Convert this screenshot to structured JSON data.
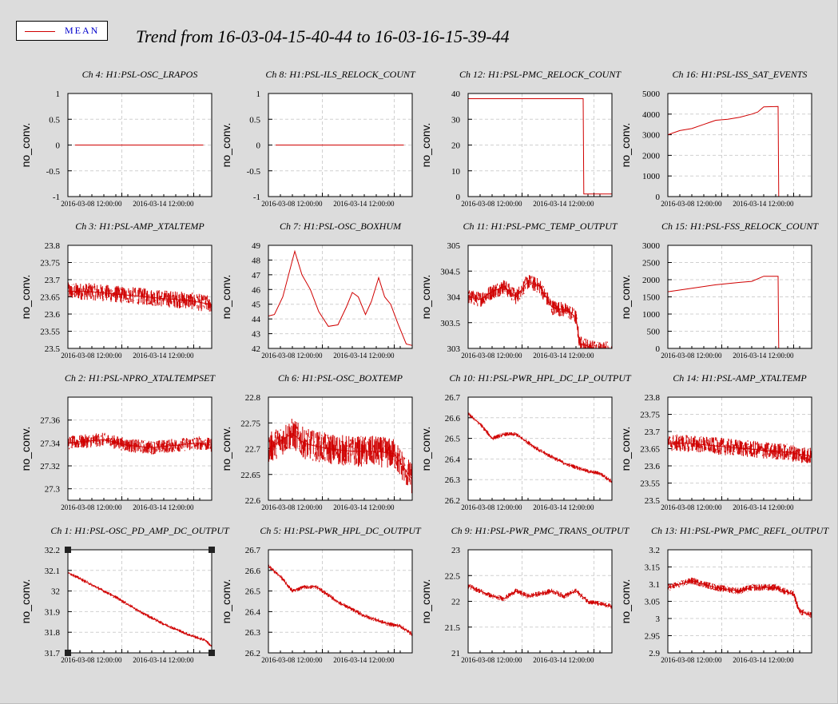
{
  "legend": {
    "label": "MEAN",
    "color": "#d00000"
  },
  "header": {
    "title": "Trend from 16-03-04-15-40-44 to 16-03-16-15-39-44"
  },
  "chart_data": [
    {
      "type": "line",
      "title": "Ch 4: H1:PSL-OSC_LRAPOS",
      "ylabel": "no_conv.",
      "ylim": [
        -1,
        1
      ],
      "yticks": [
        "1",
        "0.5",
        "0",
        "-0.5",
        "-1"
      ],
      "xticks": [
        "2016-03-08 12:00:00",
        "2016-03-14 12:00:00"
      ],
      "xlim": [
        0,
        12
      ],
      "series": [
        {
          "points": [
            [
              0.6,
              0
            ],
            [
              11.3,
              0
            ]
          ],
          "noise": 0
        }
      ]
    },
    {
      "type": "line",
      "title": "Ch 8: H1:PSL-ILS_RELOCK_COUNT",
      "ylabel": "no_conv.",
      "ylim": [
        -1,
        1
      ],
      "yticks": [
        "1",
        "0.5",
        "0",
        "-0.5",
        "-1"
      ],
      "xticks": [
        "2016-03-08 12:00:00",
        "2016-03-14 12:00:00"
      ],
      "xlim": [
        0,
        12
      ],
      "series": [
        {
          "points": [
            [
              0.6,
              0
            ],
            [
              11.3,
              0
            ]
          ],
          "noise": 0
        }
      ]
    },
    {
      "type": "line",
      "title": "Ch 12: H1:PSL-PMC_RELOCK_COUNT",
      "ylabel": "no_conv.",
      "ylim": [
        0,
        40
      ],
      "yticks": [
        "40",
        "30",
        "20",
        "10",
        "0"
      ],
      "xticks": [
        "2016-03-08 12:00:00",
        "2016-03-14 12:00:00"
      ],
      "xlim": [
        0,
        12
      ],
      "series": [
        {
          "points": [
            [
              0,
              38
            ],
            [
              9.6,
              38
            ],
            [
              9.65,
              1
            ],
            [
              12,
              1
            ]
          ],
          "noise": 0
        }
      ]
    },
    {
      "type": "line",
      "title": "Ch 16: H1:PSL-ISS_SAT_EVENTS",
      "ylabel": "no_conv.",
      "ylim": [
        0,
        5000
      ],
      "yticks": [
        "5000",
        "4000",
        "3000",
        "2000",
        "1000",
        "0"
      ],
      "xticks": [
        "2016-03-08 12:00:00",
        "2016-03-14 12:00:00"
      ],
      "xlim": [
        0,
        12
      ],
      "series": [
        {
          "points": [
            [
              0,
              3000
            ],
            [
              1,
              3200
            ],
            [
              2,
              3300
            ],
            [
              3,
              3500
            ],
            [
              4,
              3700
            ],
            [
              5,
              3750
            ],
            [
              6,
              3850
            ],
            [
              7,
              4000
            ],
            [
              7.5,
              4100
            ],
            [
              8,
              4350
            ],
            [
              9.2,
              4370
            ],
            [
              9.25,
              0
            ],
            [
              12,
              0
            ]
          ],
          "noise": 0
        }
      ]
    },
    {
      "type": "line",
      "title": "Ch 3: H1:PSL-AMP_XTALTEMP",
      "ylabel": "no_conv.",
      "ylim": [
        23.5,
        23.8
      ],
      "yticks": [
        "23.8",
        "23.75",
        "23.7",
        "23.65",
        "23.6",
        "23.55",
        "23.5"
      ],
      "xticks": [
        "2016-03-08 12:00:00",
        "2016-03-14 12:00:00"
      ],
      "xlim": [
        0,
        12
      ],
      "series": [
        {
          "points": [
            [
              0,
              23.667
            ],
            [
              2,
              23.665
            ],
            [
              4,
              23.658
            ],
            [
              6,
              23.652
            ],
            [
              8,
              23.645
            ],
            [
              10,
              23.64
            ],
            [
              12,
              23.628
            ]
          ],
          "noise": 0.025
        }
      ]
    },
    {
      "type": "line",
      "title": "Ch 7: H1:PSL-OSC_BOXHUM",
      "ylabel": "no_conv.",
      "ylim": [
        42,
        49
      ],
      "yticks": [
        "49",
        "48",
        "47",
        "46",
        "45",
        "44",
        "43",
        "42"
      ],
      "xticks": [
        "2016-03-08 12:00:00",
        "2016-03-14 12:00:00"
      ],
      "xlim": [
        0,
        12
      ],
      "series": [
        {
          "points": [
            [
              0,
              44.2
            ],
            [
              0.5,
              44.3
            ],
            [
              1.2,
              45.5
            ],
            [
              2.2,
              48.6
            ],
            [
              2.8,
              47
            ],
            [
              3.5,
              46
            ],
            [
              4.2,
              44.5
            ],
            [
              5,
              43.5
            ],
            [
              5.8,
              43.6
            ],
            [
              6.5,
              44.8
            ],
            [
              7,
              45.8
            ],
            [
              7.5,
              45.5
            ],
            [
              8.1,
              44.3
            ],
            [
              8.6,
              45.2
            ],
            [
              9.2,
              46.8
            ],
            [
              9.7,
              45.5
            ],
            [
              10.2,
              45
            ],
            [
              10.8,
              43.7
            ],
            [
              11.5,
              42.3
            ],
            [
              12,
              42.2
            ]
          ],
          "noise": 0
        }
      ]
    },
    {
      "type": "line",
      "title": "Ch 11: H1:PSL-PMC_TEMP_OUTPUT",
      "ylabel": "no_conv.",
      "ylim": [
        303,
        305
      ],
      "yticks": [
        "305",
        "304.5",
        "304",
        "303.5",
        "303"
      ],
      "xticks": [
        "2016-03-08 12:00:00",
        "2016-03-14 12:00:00"
      ],
      "xlim": [
        0,
        12
      ],
      "series": [
        {
          "points": [
            [
              0,
              304
            ],
            [
              1,
              303.95
            ],
            [
              2,
              304.1
            ],
            [
              3,
              304.2
            ],
            [
              4,
              304.0
            ],
            [
              5,
              304.3
            ],
            [
              6,
              304.2
            ],
            [
              7,
              303.8
            ],
            [
              8,
              303.75
            ],
            [
              8.5,
              303.7
            ],
            [
              9,
              303.6
            ],
            [
              9.3,
              303.1
            ],
            [
              10.5,
              303.0
            ],
            [
              12,
              303.0
            ]
          ],
          "noise": 0.15
        }
      ]
    },
    {
      "type": "line",
      "title": "Ch 15: H1:PSL-FSS_RELOCK_COUNT",
      "ylabel": "no_conv.",
      "ylim": [
        0,
        3000
      ],
      "yticks": [
        "3000",
        "2500",
        "2000",
        "1500",
        "1000",
        "500",
        "0"
      ],
      "xticks": [
        "2016-03-08 12:00:00",
        "2016-03-14 12:00:00"
      ],
      "xlim": [
        0,
        12
      ],
      "series": [
        {
          "points": [
            [
              0,
              1650
            ],
            [
              2,
              1750
            ],
            [
              4,
              1850
            ],
            [
              6,
              1920
            ],
            [
              7,
              1950
            ],
            [
              8,
              2100
            ],
            [
              9.2,
              2100
            ],
            [
              9.25,
              0
            ],
            [
              12,
              0
            ]
          ],
          "noise": 0
        }
      ]
    },
    {
      "type": "line",
      "title": "Ch 2: H1:PSL-NPRO_XTALTEMPSET",
      "ylabel": "no_conv.",
      "ylim": [
        27.29,
        27.38
      ],
      "yticks": [
        "27.36",
        "27.34",
        "27.32",
        "27.3"
      ],
      "xticks": [
        "2016-03-08 12:00:00",
        "2016-03-14 12:00:00"
      ],
      "xlim": [
        0,
        12
      ],
      "series": [
        {
          "points": [
            [
              0,
              27.34
            ],
            [
              3,
              27.343
            ],
            [
              5,
              27.338
            ],
            [
              7,
              27.336
            ],
            [
              9,
              27.338
            ],
            [
              11,
              27.34
            ],
            [
              12,
              27.338
            ]
          ],
          "noise": 0.006
        }
      ]
    },
    {
      "type": "line",
      "title": "Ch 6: H1:PSL-OSC_BOXTEMP",
      "ylabel": "no_conv.",
      "ylim": [
        22.6,
        22.8
      ],
      "yticks": [
        "22.8",
        "22.75",
        "22.7",
        "22.65",
        "22.6"
      ],
      "xticks": [
        "2016-03-08 12:00:00",
        "2016-03-14 12:00:00"
      ],
      "xlim": [
        0,
        12
      ],
      "series": [
        {
          "points": [
            [
              0,
              22.7
            ],
            [
              2,
              22.73
            ],
            [
              3,
              22.71
            ],
            [
              5,
              22.7
            ],
            [
              7,
              22.695
            ],
            [
              9,
              22.695
            ],
            [
              10.5,
              22.69
            ],
            [
              12,
              22.64
            ]
          ],
          "noise": 0.03
        }
      ]
    },
    {
      "type": "line",
      "title": "Ch 10: H1:PSL-PWR_HPL_DC_LP_OUTPUT",
      "ylabel": "no_conv.",
      "ylim": [
        26.2,
        26.7
      ],
      "yticks": [
        "26.7",
        "26.6",
        "26.5",
        "26.4",
        "26.3",
        "26.2"
      ],
      "xticks": [
        "2016-03-08 12:00:00",
        "2016-03-14 12:00:00"
      ],
      "xlim": [
        0,
        12
      ],
      "series": [
        {
          "points": [
            [
              0,
              26.62
            ],
            [
              1,
              26.57
            ],
            [
              2,
              26.5
            ],
            [
              3,
              26.52
            ],
            [
              4,
              26.52
            ],
            [
              5,
              26.48
            ],
            [
              6,
              26.44
            ],
            [
              7,
              26.41
            ],
            [
              8,
              26.38
            ],
            [
              9,
              26.36
            ],
            [
              10,
              26.34
            ],
            [
              11,
              26.33
            ],
            [
              12,
              26.29
            ]
          ],
          "noise": 0.01
        }
      ]
    },
    {
      "type": "line",
      "title": "Ch 14: H1:PSL-AMP_XTALTEMP",
      "ylabel": "no_conv.",
      "ylim": [
        23.5,
        23.8
      ],
      "yticks": [
        "23.8",
        "23.75",
        "23.7",
        "23.65",
        "23.6",
        "23.55",
        "23.5"
      ],
      "xticks": [
        "2016-03-08 12:00:00",
        "2016-03-14 12:00:00"
      ],
      "xlim": [
        0,
        12
      ],
      "series": [
        {
          "points": [
            [
              0,
              23.667
            ],
            [
              2,
              23.665
            ],
            [
              4,
              23.658
            ],
            [
              6,
              23.652
            ],
            [
              8,
              23.645
            ],
            [
              10,
              23.64
            ],
            [
              12,
              23.628
            ]
          ],
          "noise": 0.025
        }
      ]
    },
    {
      "type": "line",
      "title": "Ch 1: H1:PSL-OSC_PD_AMP_DC_OUTPUT",
      "ylabel": "no_conv.",
      "ylim": [
        31.7,
        32.2
      ],
      "yticks": [
        "32.2",
        "32.1",
        "32",
        "31.9",
        "31.8",
        "31.7"
      ],
      "xticks": [
        "2016-03-08 12:00:00",
        "2016-03-14 12:00:00"
      ],
      "xlim": [
        0,
        12
      ],
      "series": [
        {
          "points": [
            [
              0,
              32.09
            ],
            [
              2,
              32.03
            ],
            [
              4,
              31.97
            ],
            [
              6,
              31.9
            ],
            [
              8,
              31.84
            ],
            [
              10,
              31.79
            ],
            [
              11.5,
              31.76
            ],
            [
              12,
              31.73
            ]
          ],
          "noise": 0.008
        }
      ]
    },
    {
      "type": "line",
      "title": "Ch 5: H1:PSL-PWR_HPL_DC_OUTPUT",
      "ylabel": "no_conv.",
      "ylim": [
        26.2,
        26.7
      ],
      "yticks": [
        "26.7",
        "26.6",
        "26.5",
        "26.4",
        "26.3",
        "26.2"
      ],
      "xticks": [
        "2016-03-08 12:00:00",
        "2016-03-14 12:00:00"
      ],
      "xlim": [
        0,
        12
      ],
      "series": [
        {
          "points": [
            [
              0,
              26.62
            ],
            [
              1,
              26.57
            ],
            [
              2,
              26.5
            ],
            [
              3,
              26.52
            ],
            [
              4,
              26.52
            ],
            [
              5,
              26.48
            ],
            [
              6,
              26.44
            ],
            [
              7,
              26.41
            ],
            [
              8,
              26.38
            ],
            [
              9,
              26.36
            ],
            [
              10,
              26.34
            ],
            [
              11,
              26.33
            ],
            [
              12,
              26.29
            ]
          ],
          "noise": 0.01
        }
      ]
    },
    {
      "type": "line",
      "title": "Ch 9: H1:PSL-PWR_PMC_TRANS_OUTPUT",
      "ylabel": "no_conv.",
      "ylim": [
        21,
        23
      ],
      "yticks": [
        "23",
        "22.5",
        "22",
        "21.5",
        "21"
      ],
      "xticks": [
        "2016-03-08 12:00:00",
        "2016-03-14 12:00:00"
      ],
      "xlim": [
        0,
        12
      ],
      "series": [
        {
          "points": [
            [
              0,
              22.3
            ],
            [
              1,
              22.2
            ],
            [
              2,
              22.1
            ],
            [
              3,
              22.05
            ],
            [
              4,
              22.2
            ],
            [
              5,
              22.1
            ],
            [
              6,
              22.15
            ],
            [
              7,
              22.2
            ],
            [
              8,
              22.1
            ],
            [
              9,
              22.2
            ],
            [
              10,
              22.0
            ],
            [
              11,
              21.95
            ],
            [
              12,
              21.9
            ]
          ],
          "noise": 0.05
        }
      ]
    },
    {
      "type": "line",
      "title": "Ch 13: H1:PSL-PWR_PMC_REFL_OUTPUT",
      "ylabel": "no_conv.",
      "ylim": [
        2.9,
        3.2
      ],
      "yticks": [
        "3.2",
        "3.15",
        "3.1",
        "3.05",
        "3",
        "2.95",
        "2.9"
      ],
      "xticks": [
        "2016-03-08 12:00:00",
        "2016-03-14 12:00:00"
      ],
      "xlim": [
        0,
        12
      ],
      "series": [
        {
          "points": [
            [
              0,
              3.09
            ],
            [
              2,
              3.11
            ],
            [
              4,
              3.09
            ],
            [
              6,
              3.08
            ],
            [
              7,
              3.09
            ],
            [
              9,
              3.09
            ],
            [
              10.5,
              3.07
            ],
            [
              11,
              3.02
            ],
            [
              12,
              3.01
            ]
          ],
          "noise": 0.01
        }
      ]
    }
  ]
}
